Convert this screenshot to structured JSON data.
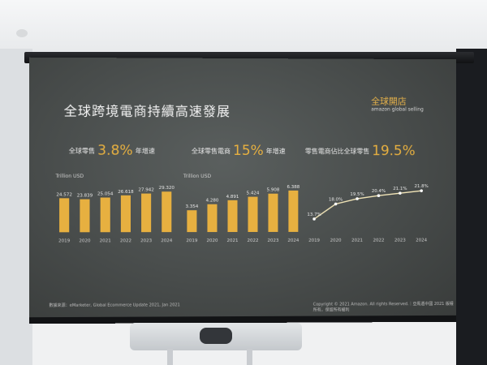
{
  "slide": {
    "title": "全球跨境電商持續高速發展",
    "brand_cn": "全球開店",
    "brand_en": "amazon global selling",
    "metric1": {
      "label": "全球零售",
      "value": "3.8%",
      "suffix": "年增速"
    },
    "metric2": {
      "label": "全球零售電商",
      "value": "15%",
      "suffix": "年增速"
    },
    "metric3": {
      "label": "零售電商佔比全球零售",
      "value": "19.5%"
    },
    "unit1": "Trillion USD",
    "unit2": "Trillion USD",
    "source": "數據來源：eMarketer, Global Ecommerce Update 2021, Jan 2021",
    "copyright": "Copyright © 2021 Amazon. All rights Reserved.｜亞馬遜中國 2021 版權所有，保留所有權利"
  },
  "chart_data": [
    {
      "type": "bar",
      "categories": [
        "2019",
        "2020",
        "2021",
        "2022",
        "2023",
        "2024"
      ],
      "values": [
        24.572,
        23.839,
        25.054,
        26.618,
        27.942,
        29.32
      ],
      "value_labels": [
        "24.572",
        "23.839",
        "25.054",
        "26.618",
        "27.942",
        "29.320"
      ],
      "ylabel": "Trillion USD",
      "ylim": [
        0,
        33
      ],
      "color": "#e7b040"
    },
    {
      "type": "bar",
      "categories": [
        "2019",
        "2020",
        "2021",
        "2022",
        "2023",
        "2024"
      ],
      "values": [
        3.354,
        4.28,
        4.891,
        5.424,
        5.908,
        6.388
      ],
      "value_labels": [
        "3.354",
        "4.280",
        "4.891",
        "5.424",
        "5.908",
        "6.388"
      ],
      "ylabel": "Trillion USD",
      "ylim": [
        0,
        7
      ],
      "color": "#e7b040"
    },
    {
      "type": "line",
      "x": [
        "2019",
        "2020",
        "2021",
        "2022",
        "2023",
        "2024"
      ],
      "values": [
        13.7,
        18.0,
        19.5,
        20.4,
        21.1,
        21.8
      ],
      "value_labels": [
        "13.7%",
        "18.0%",
        "19.5%",
        "20.4%",
        "21.1%",
        "21.8%"
      ],
      "ylim": [
        10,
        23
      ],
      "color": "#f3e6b8"
    }
  ]
}
